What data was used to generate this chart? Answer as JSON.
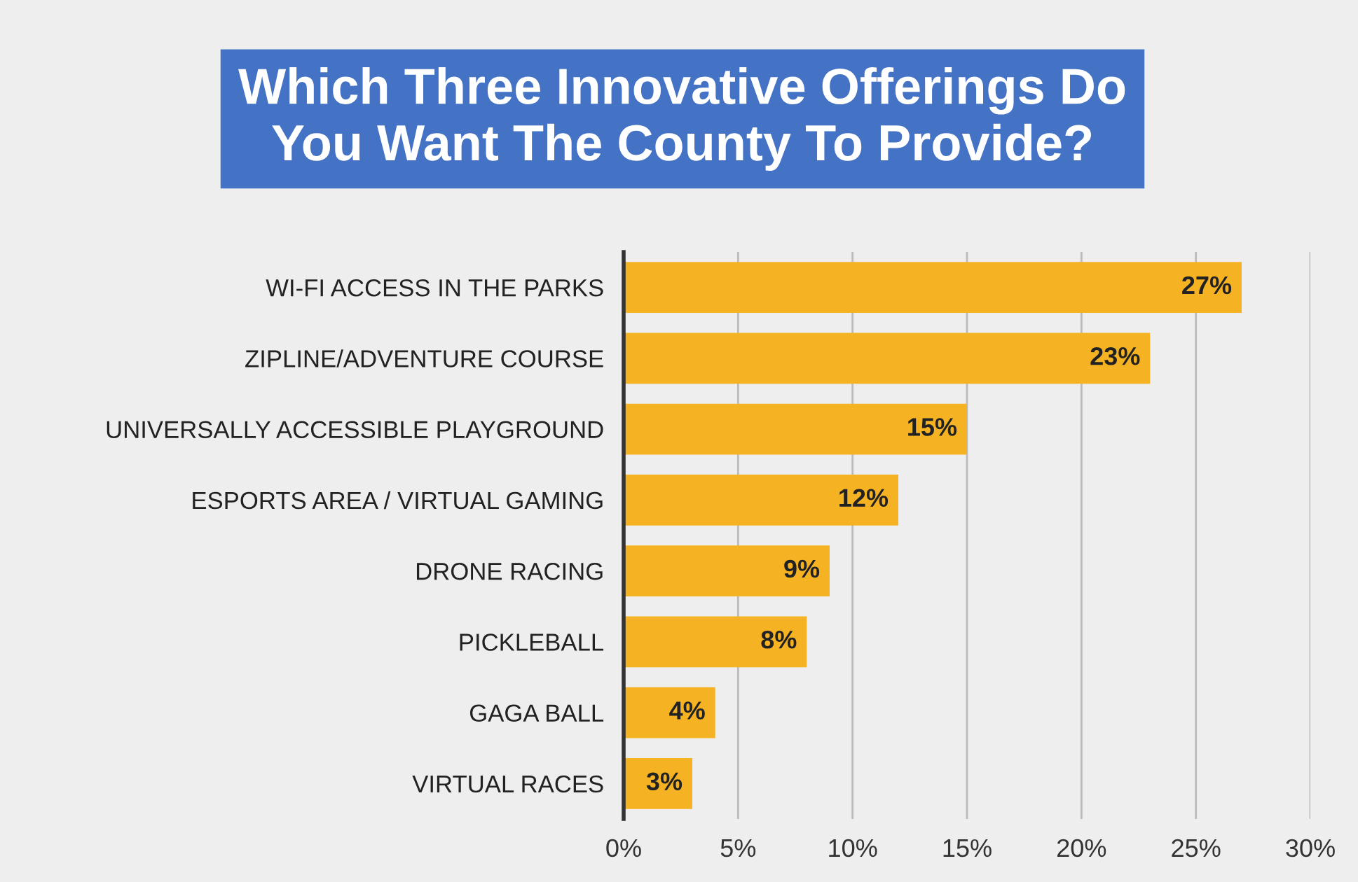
{
  "chart_data": {
    "type": "bar",
    "orientation": "horizontal",
    "title": "Which Three Innovative Offerings Do\nYou Want The County To Provide?",
    "categories": [
      "WI-FI ACCESS IN THE PARKS",
      "ZIPLINE/ADVENTURE COURSE",
      "UNIVERSALLY ACCESSIBLE PLAYGROUND",
      "ESPORTS AREA / VIRTUAL GAMING",
      "DRONE RACING",
      "PICKLEBALL",
      "GAGA BALL",
      "VIRTUAL RACES"
    ],
    "values": [
      27,
      23,
      15,
      12,
      9,
      8,
      4,
      3
    ],
    "value_labels": [
      "27%",
      "23%",
      "15%",
      "12%",
      "9%",
      "8%",
      "4%",
      "3%"
    ],
    "color": "#f5b324",
    "xlim": [
      0,
      30
    ],
    "xticks": [
      {
        "value": 0,
        "label": "0%"
      },
      {
        "value": 5,
        "label": "5%"
      },
      {
        "value": 10,
        "label": "10%"
      },
      {
        "value": 15,
        "label": "15%"
      },
      {
        "value": 20,
        "label": "20%"
      },
      {
        "value": 25,
        "label": "25%"
      },
      {
        "value": 30,
        "label": "30%"
      }
    ],
    "grid": "x",
    "legend": false
  }
}
